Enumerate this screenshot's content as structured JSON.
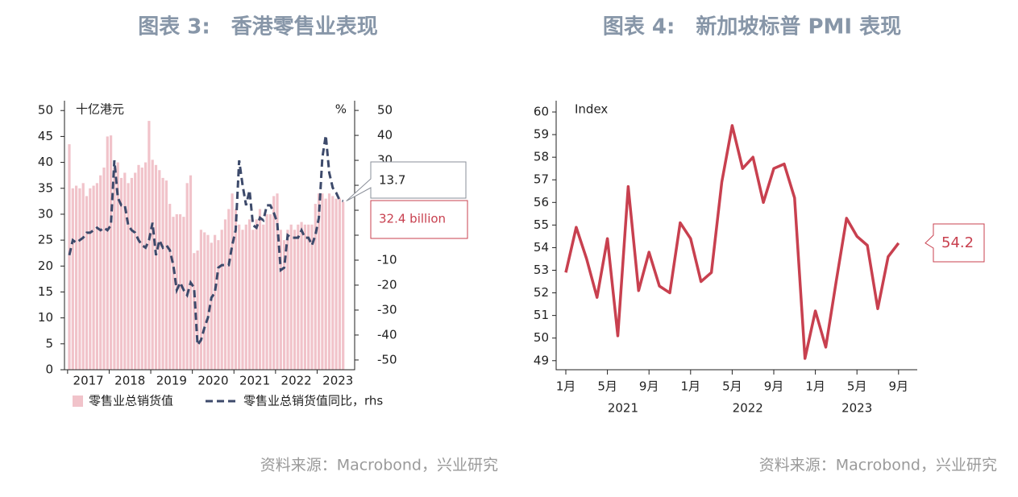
{
  "chart_data": [
    {
      "type": "bar_line",
      "title": "图表 3:　香港零售业表现",
      "y_label": "十亿港元",
      "y2_label": "%",
      "categories": [
        null,
        null,
        null,
        null,
        null,
        null,
        "2017",
        null,
        null,
        null,
        null,
        null,
        null,
        null,
        null,
        null,
        null,
        null,
        "2018",
        null,
        null,
        null,
        null,
        null,
        null,
        null,
        null,
        null,
        null,
        null,
        "2019",
        null,
        null,
        null,
        null,
        null,
        null,
        null,
        null,
        null,
        null,
        null,
        "2020",
        null,
        null,
        null,
        null,
        null,
        null,
        null,
        null,
        null,
        null,
        null,
        "2021",
        null,
        null,
        null,
        null,
        null,
        null,
        null,
        null,
        null,
        null,
        null,
        "2022",
        null,
        null,
        null,
        null,
        null,
        null,
        null,
        null,
        null,
        null,
        null,
        "2023",
        null
      ],
      "series": [
        {
          "name": "零售业总销货值",
          "color": "#f1c3ca",
          "values": [
            43.5,
            35,
            35.5,
            35,
            36,
            33.5,
            35,
            35.5,
            36,
            37.5,
            39,
            45,
            45.2,
            39,
            40,
            37,
            38,
            36,
            37,
            38,
            39.5,
            39,
            40,
            48,
            40.5,
            39.5,
            38.5,
            37,
            36.5,
            32,
            29.5,
            30,
            30,
            29.5,
            36,
            37.5,
            22.5,
            23,
            27,
            26.5,
            26,
            24.5,
            26,
            25,
            27,
            29,
            31,
            34,
            31,
            28,
            27,
            28,
            29,
            27,
            29,
            31,
            28,
            30,
            30,
            33.5,
            34,
            27,
            25,
            27,
            28,
            27,
            28,
            28.5,
            28,
            28,
            28,
            32,
            34,
            34,
            33,
            34,
            33.5,
            33,
            33,
            32.4
          ],
          "value_labels": [
            null,
            null,
            null,
            null,
            null,
            null,
            null,
            null,
            null,
            null,
            null,
            null,
            null,
            null,
            null,
            null,
            null,
            null,
            null,
            null,
            null,
            null,
            null,
            null,
            null,
            null,
            null,
            null,
            null,
            null,
            null,
            null,
            null,
            null,
            null,
            null,
            null,
            null,
            null,
            null,
            null,
            null,
            null,
            null,
            null,
            null,
            null,
            null,
            null,
            null,
            null,
            null,
            null,
            null,
            null,
            null,
            null,
            null,
            null,
            null,
            null,
            null,
            null,
            null,
            null,
            null,
            null,
            null,
            null,
            null,
            null,
            null,
            null,
            null,
            null,
            null,
            null,
            null,
            null,
            "32.4 billion"
          ]
        },
        {
          "name": "零售业总销货值同比，rhs",
          "color": "#3d4a6b",
          "axis": "y2",
          "values": [
            -8,
            -2,
            -3,
            -2,
            -1,
            1,
            1,
            2,
            3,
            2,
            3,
            2,
            4,
            30,
            15,
            12,
            12,
            4,
            2,
            1,
            -2,
            -4,
            -5,
            -2,
            5,
            -8,
            -2,
            -5,
            -4,
            -6,
            -12,
            -22,
            -19,
            -22,
            -24,
            -19,
            -21,
            -44,
            -42,
            -37,
            -33,
            -25,
            -23,
            -13,
            -12,
            -12,
            -12,
            -4,
            2,
            30,
            20,
            12,
            18,
            4,
            3,
            7,
            6,
            12,
            12,
            9,
            5,
            -14,
            -13,
            0,
            -1,
            -1,
            -1,
            2,
            -1,
            -1,
            -4,
            0,
            7,
            31,
            40,
            25,
            19,
            17,
            14,
            13.7
          ]
        }
      ],
      "ylim": [
        0,
        51.9
      ],
      "yticks": [
        0,
        5,
        10,
        15,
        20,
        25,
        30,
        35,
        40,
        45,
        50
      ],
      "y2lim": [
        -53.9,
        53.9
      ],
      "y2ticks": [
        -50,
        -40,
        -30,
        -20,
        -10,
        0,
        10,
        20,
        30,
        40,
        50
      ],
      "source": "资料来源：Macrobond，兴业研究"
    },
    {
      "type": "line",
      "title": "图表 4:　新加坡标普 PMI 表现",
      "y_label": "Index",
      "categories": [
        "1月",
        null,
        null,
        null,
        "5月",
        null,
        null,
        null,
        "9月",
        null,
        null,
        null,
        "1月",
        null,
        null,
        null,
        "5月",
        null,
        null,
        null,
        "9月",
        null,
        null,
        null,
        "1月",
        null,
        null,
        null,
        "5月",
        null,
        null,
        null,
        "9月"
      ],
      "groups": [
        "2021",
        "2022",
        "2023"
      ],
      "series": [
        {
          "name": "PMI",
          "color": "#c8404f",
          "values": [
            52.9,
            54.9,
            53.5,
            51.8,
            54.4,
            50.1,
            56.7,
            52.1,
            53.8,
            52.3,
            52.0,
            55.1,
            54.4,
            52.5,
            52.9,
            56.9,
            59.4,
            57.5,
            58.0,
            56.0,
            57.5,
            57.7,
            56.2,
            49.1,
            51.2,
            49.6,
            52.5,
            55.3,
            54.5,
            54.1,
            51.3,
            53.6,
            54.2
          ]
        }
      ],
      "ylim": [
        48.6,
        60.5
      ],
      "yticks": [
        49,
        50,
        51,
        52,
        53,
        54,
        55,
        56,
        57,
        58,
        59,
        60
      ],
      "source": "资料来源：Macrobond，兴业研究"
    }
  ]
}
